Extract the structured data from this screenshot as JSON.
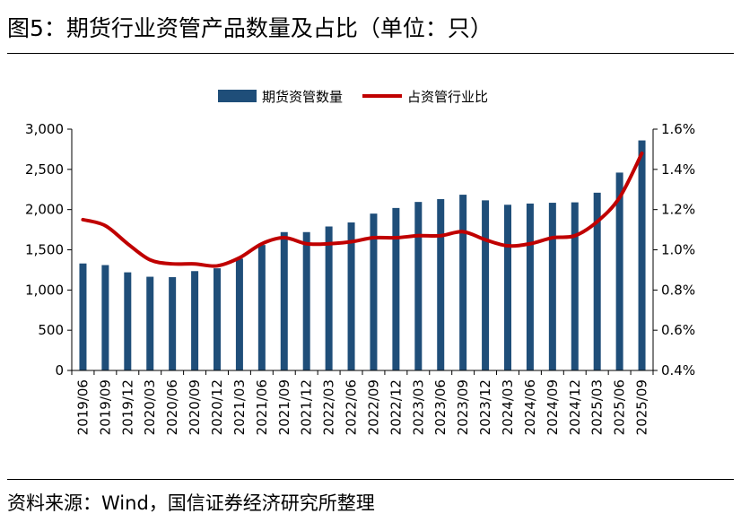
{
  "figure": {
    "title": "图5：期货行业资管产品数量及占比（单位：只）",
    "source": "资料来源：Wind，国信证券经济研究所整理"
  },
  "colors": {
    "bar": "#1f4e79",
    "line": "#c00000",
    "axis": "#000000"
  },
  "chart_data": {
    "type": "bar",
    "categories": [
      "2019/06",
      "2019/09",
      "2019/12",
      "2020/03",
      "2020/06",
      "2020/09",
      "2020/12",
      "2021/03",
      "2021/06",
      "2021/09",
      "2021/12",
      "2022/03",
      "2022/06",
      "2022/09",
      "2022/12",
      "2023/03",
      "2023/06",
      "2023/09",
      "2023/12",
      "2024/03",
      "2024/06",
      "2024/09",
      "2024/12",
      "2025/03",
      "2025/06",
      "2025/09"
    ],
    "series": [
      {
        "name": "期货资管数量",
        "kind": "bar",
        "axis": "left",
        "values": [
          1330,
          1310,
          1220,
          1165,
          1160,
          1235,
          1270,
          1390,
          1560,
          1720,
          1720,
          1790,
          1840,
          1950,
          2020,
          2095,
          2130,
          2185,
          2115,
          2060,
          2075,
          2085,
          2090,
          2210,
          2460,
          2860
        ]
      },
      {
        "name": "占资管行业比",
        "kind": "line",
        "axis": "right",
        "values": [
          1.15,
          1.12,
          1.03,
          0.95,
          0.93,
          0.93,
          0.92,
          0.96,
          1.03,
          1.06,
          1.03,
          1.03,
          1.04,
          1.06,
          1.06,
          1.07,
          1.07,
          1.09,
          1.05,
          1.02,
          1.03,
          1.06,
          1.07,
          1.14,
          1.26,
          1.48
        ]
      }
    ],
    "yleft": {
      "ylim": [
        0,
        3000
      ],
      "ticks": [
        0,
        500,
        1000,
        1500,
        2000,
        2500,
        3000
      ],
      "tick_labels": [
        "0",
        "500",
        "1,000",
        "1,500",
        "2,000",
        "2,500",
        "3,000"
      ]
    },
    "yright": {
      "ylim": [
        0.4,
        1.6
      ],
      "ticks": [
        0.4,
        0.6,
        0.8,
        1.0,
        1.2,
        1.4,
        1.6
      ],
      "tick_labels": [
        "0.4%",
        "0.6%",
        "0.8%",
        "1.0%",
        "1.2%",
        "1.4%",
        "1.6%"
      ]
    },
    "legend": "top-center",
    "grid": false
  }
}
